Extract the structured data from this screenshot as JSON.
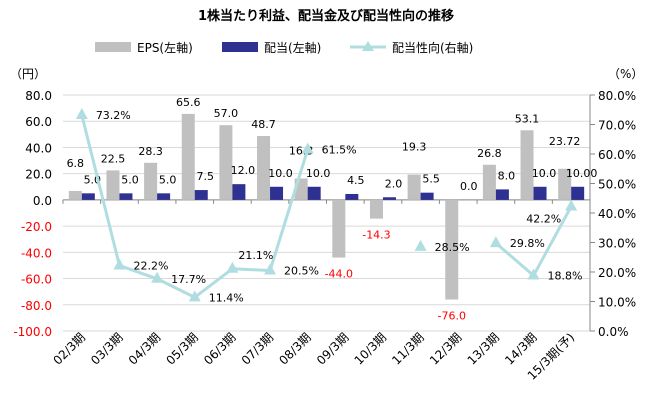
{
  "chart_data": {
    "type": "bar+line",
    "title": "1株当たり利益、配当金及び配当性向の推移",
    "left_unit": "（円）",
    "right_unit": "（%）",
    "categories": [
      "02/3期",
      "03/3期",
      "04/3期",
      "05/3期",
      "06/3期",
      "07/3期",
      "08/3期",
      "09/3期",
      "10/3期",
      "11/3期",
      "12/3期",
      "13/3期",
      "14/3期",
      "15/3期(予)"
    ],
    "left_ylim": [
      -100,
      80
    ],
    "left_ticks": [
      "80.0",
      "60.0",
      "40.0",
      "20.0",
      "0.0",
      "-20.0",
      "-40.0",
      "-60.0",
      "-80.0",
      "-100.0"
    ],
    "right_ylim": [
      0,
      80
    ],
    "right_ticks": [
      "80.0%",
      "70.0%",
      "60.0%",
      "50.0%",
      "40.0%",
      "30.0%",
      "20.0%",
      "10.0%",
      "0.0%"
    ],
    "grid": true,
    "legend_position": "top",
    "series": [
      {
        "name": "EPS(左軸)",
        "type": "bar",
        "axis": "left",
        "color": "#c0c0c0",
        "values": [
          6.8,
          22.5,
          28.3,
          65.6,
          57.0,
          48.7,
          16.3,
          -44.0,
          -14.3,
          19.3,
          -76.0,
          26.8,
          53.1,
          23.72
        ],
        "labels": [
          "6.8",
          "22.5",
          "28.3",
          "65.6",
          "57.0",
          "48.7",
          "16.3",
          "-44.0",
          "-14.3",
          "19.3",
          "-76.0",
          "26.8",
          "53.1",
          "23.72"
        ]
      },
      {
        "name": "配当(左軸)",
        "type": "bar",
        "axis": "left",
        "color": "#2e3192",
        "values": [
          5.0,
          5.0,
          5.0,
          7.5,
          12.0,
          10.0,
          10.0,
          4.5,
          2.0,
          5.5,
          0.0,
          8.0,
          10.0,
          10.0
        ],
        "labels": [
          "5.0",
          "5.0",
          "5.0",
          "7.5",
          "12.0",
          "10.0",
          "10.0",
          "4.5",
          "2.0",
          "5.5",
          "0.0",
          "8.0",
          "10.0",
          "10.00"
        ]
      },
      {
        "name": "配当性向(右軸)",
        "type": "line",
        "axis": "right",
        "color": "#b0dde0",
        "values": [
          73.2,
          22.2,
          17.7,
          11.4,
          21.1,
          20.5,
          61.5,
          null,
          null,
          28.5,
          null,
          29.8,
          18.8,
          42.2
        ],
        "labels": [
          "73.2%",
          "22.2%",
          "17.7%",
          "11.4%",
          "21.1%",
          "20.5%",
          "61.5%",
          "",
          "",
          "28.5%",
          "",
          "29.8%",
          "18.8%",
          "42.2%"
        ]
      }
    ],
    "negative_label_color": "#ff0000"
  }
}
